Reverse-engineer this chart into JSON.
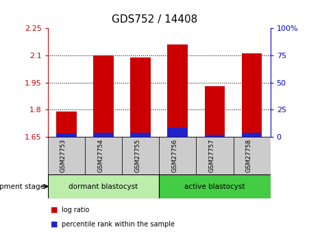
{
  "title": "GDS752 / 14408",
  "categories": [
    "GSM27753",
    "GSM27754",
    "GSM27755",
    "GSM27756",
    "GSM27757",
    "GSM27758"
  ],
  "log_ratio": [
    1.79,
    2.1,
    2.09,
    2.16,
    1.93,
    2.11
  ],
  "percentile_rank": [
    3,
    4,
    4,
    8,
    2,
    4
  ],
  "ymin": 1.65,
  "ymax": 2.25,
  "yticks": [
    1.65,
    1.8,
    1.95,
    2.1,
    2.25
  ],
  "ytick_labels": [
    "1.65",
    "1.8",
    "1.95",
    "2.1",
    "2.25"
  ],
  "right_yticks": [
    0,
    25,
    50,
    75,
    100
  ],
  "right_ytick_labels": [
    "0",
    "25",
    "50",
    "75",
    "100%"
  ],
  "bar_color_red": "#cc0000",
  "bar_color_blue": "#2222cc",
  "bar_width": 0.55,
  "groups": [
    {
      "label": "dormant blastocyst",
      "indices": [
        0,
        1,
        2
      ],
      "color": "#bbeeaa"
    },
    {
      "label": "active blastocyst",
      "indices": [
        3,
        4,
        5
      ],
      "color": "#44cc44"
    }
  ],
  "group_label": "development stage",
  "tick_label_color_left": "#cc0000",
  "tick_label_color_right": "#0000cc",
  "xtick_bg": "#cccccc",
  "legend_labels": [
    "log ratio",
    "percentile rank within the sample"
  ],
  "percentile_scale_max": 100,
  "grid_lines": [
    1.8,
    1.95,
    2.1
  ]
}
